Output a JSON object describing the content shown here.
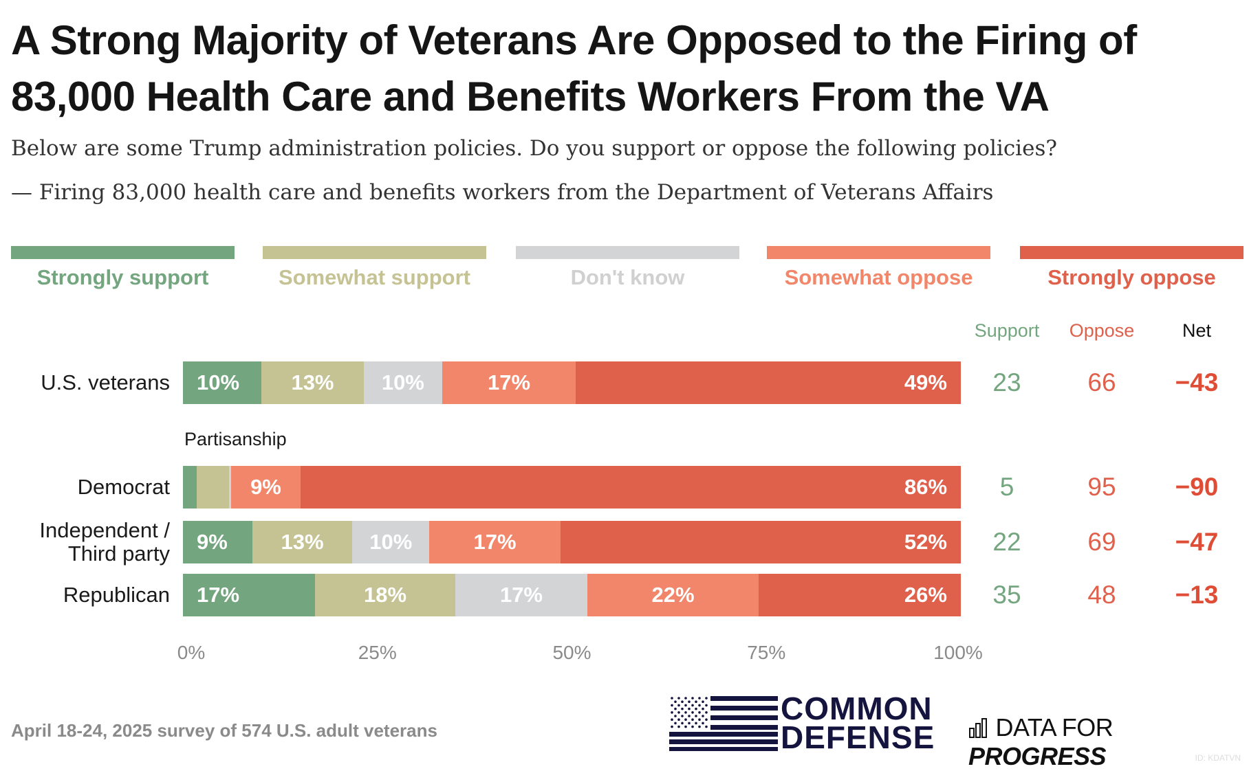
{
  "title": "A Strong Majority of Veterans Are Opposed to the Firing of 83,000 Health Care and Benefits Workers From the VA",
  "subtitle1": "Below are some Trump administration policies. Do you support or oppose the following policies?",
  "subtitle2": "— Firing 83,000 health care and benefits workers from the Department of Veterans Affairs",
  "chart_data": {
    "type": "bar",
    "orientation": "horizontal-stacked-100",
    "legend": [
      {
        "name": "Strongly support",
        "color": "#73a57f"
      },
      {
        "name": "Somewhat support",
        "color": "#c5c393"
      },
      {
        "name": "Don't know",
        "color": "#d3d4d6",
        "label_color": "#d0d0d0"
      },
      {
        "name": "Somewhat oppose",
        "color": "#f2866a"
      },
      {
        "name": "Strongly oppose",
        "color": "#df604b"
      }
    ],
    "legend_placement": "top",
    "columns": {
      "support": "Support",
      "oppose": "Oppose",
      "net": "Net"
    },
    "group_label": "Partisanship",
    "rows": [
      {
        "label": "U.S. veterans",
        "values": [
          10,
          13,
          10,
          17,
          49
        ],
        "labels": [
          "10%",
          "13%",
          "10%",
          "17%",
          "49%"
        ],
        "support": "23",
        "oppose": "66",
        "net": "−43"
      },
      {
        "label": "Democrat",
        "values": [
          0.7,
          4.2,
          0.3,
          9,
          86
        ],
        "labels": [
          "",
          "",
          "",
          "9%",
          "86%"
        ],
        "support": "5",
        "oppose": "95",
        "net": "−90"
      },
      {
        "label": "Independent / Third party",
        "values": [
          9,
          13,
          10,
          17,
          52
        ],
        "labels": [
          "9%",
          "13%",
          "10%",
          "17%",
          "52%"
        ],
        "support": "22",
        "oppose": "69",
        "net": "−47"
      },
      {
        "label": "Republican",
        "values": [
          17,
          18,
          17,
          22,
          26
        ],
        "labels": [
          "17%",
          "18%",
          "17%",
          "22%",
          "26%"
        ],
        "support": "35",
        "oppose": "48",
        "net": "−13"
      }
    ],
    "xlim": [
      0,
      100
    ],
    "xticks": [
      "0%",
      "25%",
      "50%",
      "75%",
      "100%"
    ],
    "grid": false
  },
  "footer": "April 18-24, 2025 survey of 574 U.S. adult veterans",
  "logos": {
    "common_defense": "COMMON DEFENSE",
    "dfp_light": "DATA FOR",
    "dfp_bold": "PROGRESS"
  },
  "id": "ID: KDATVN"
}
